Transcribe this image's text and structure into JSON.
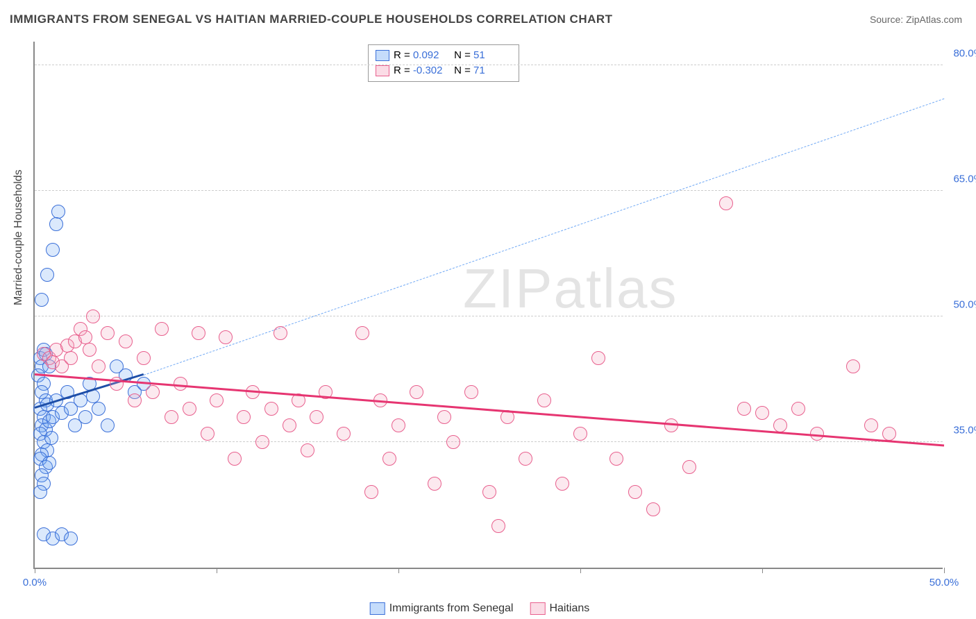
{
  "title": "IMMIGRANTS FROM SENEGAL VS HAITIAN MARRIED-COUPLE HOUSEHOLDS CORRELATION CHART",
  "source": "Source: ZipAtlas.com",
  "watermark": "ZIPatlas",
  "ylabel": "Married-couple Households",
  "chart": {
    "type": "scatter",
    "background_color": "#ffffff",
    "grid_color": "#cccccc",
    "axis_color": "#888888",
    "xlim": [
      0,
      50
    ],
    "ylim": [
      20,
      83
    ],
    "xticks": [
      0,
      10,
      20,
      30,
      40,
      50
    ],
    "xtick_labels": {
      "0": "0.0%",
      "50": "50.0%"
    },
    "yticks": [
      35,
      50,
      65,
      80
    ],
    "ytick_labels": {
      "35": "35.0%",
      "50": "50.0%",
      "65": "65.0%",
      "80": "80.0%"
    },
    "tick_color": "#3a6fd8",
    "tick_fontsize": 15,
    "marker_radius": 9,
    "marker_border_width": 1.5,
    "marker_fill_opacity": 0.25,
    "series": [
      {
        "name": "Immigrants from Senegal",
        "fill_color": "#6fa8f5",
        "border_color": "#3a6fd8",
        "R": "0.092",
        "N": "51",
        "trend": {
          "x1": 0,
          "y1": 39,
          "x2": 6,
          "y2": 43,
          "color": "#1d4ea8",
          "width": 3,
          "dash": false
        },
        "trend_ext": {
          "x1": 6,
          "y1": 43,
          "x2": 50,
          "y2": 76,
          "color": "#6fa8f5",
          "width": 1.5,
          "dash": true
        },
        "points": [
          [
            0.3,
            45
          ],
          [
            0.4,
            44
          ],
          [
            0.5,
            46
          ],
          [
            0.6,
            45.5
          ],
          [
            0.2,
            43
          ],
          [
            0.5,
            42
          ],
          [
            0.8,
            44
          ],
          [
            0.4,
            41
          ],
          [
            0.6,
            40
          ],
          [
            0.3,
            39
          ],
          [
            0.5,
            38
          ],
          [
            0.7,
            39.5
          ],
          [
            0.4,
            37
          ],
          [
            0.6,
            36.5
          ],
          [
            0.3,
            36
          ],
          [
            0.8,
            37.5
          ],
          [
            0.5,
            35
          ],
          [
            0.7,
            34
          ],
          [
            0.4,
            33.5
          ],
          [
            0.9,
            35.5
          ],
          [
            0.3,
            33
          ],
          [
            0.6,
            32
          ],
          [
            0.4,
            31
          ],
          [
            0.8,
            32.5
          ],
          [
            0.5,
            30
          ],
          [
            0.3,
            29
          ],
          [
            1.0,
            38
          ],
          [
            1.2,
            40
          ],
          [
            1.5,
            38.5
          ],
          [
            1.8,
            41
          ],
          [
            2.0,
            39
          ],
          [
            2.2,
            37
          ],
          [
            2.5,
            40
          ],
          [
            2.8,
            38
          ],
          [
            3.0,
            42
          ],
          [
            3.2,
            40.5
          ],
          [
            3.5,
            39
          ],
          [
            4.0,
            37
          ],
          [
            4.5,
            44
          ],
          [
            5.0,
            43
          ],
          [
            5.5,
            41
          ],
          [
            6.0,
            42
          ],
          [
            0.4,
            52
          ],
          [
            0.7,
            55
          ],
          [
            1.0,
            58
          ],
          [
            1.3,
            62.5
          ],
          [
            1.2,
            61
          ],
          [
            0.5,
            24
          ],
          [
            1.0,
            23.5
          ],
          [
            1.5,
            24
          ],
          [
            2.0,
            23.5
          ]
        ]
      },
      {
        "name": "Haitians",
        "fill_color": "#f5a8c0",
        "border_color": "#e85f8d",
        "R": "-0.302",
        "N": "71",
        "trend": {
          "x1": 0,
          "y1": 43,
          "x2": 50,
          "y2": 34.5,
          "color": "#e63571",
          "width": 3,
          "dash": false
        },
        "points": [
          [
            0.5,
            45.5
          ],
          [
            0.8,
            45
          ],
          [
            1.0,
            44.5
          ],
          [
            1.2,
            46
          ],
          [
            1.5,
            44
          ],
          [
            1.8,
            46.5
          ],
          [
            2.0,
            45
          ],
          [
            2.2,
            47
          ],
          [
            2.5,
            48.5
          ],
          [
            2.8,
            47.5
          ],
          [
            3.0,
            46
          ],
          [
            3.2,
            50
          ],
          [
            3.5,
            44
          ],
          [
            4.0,
            48
          ],
          [
            4.5,
            42
          ],
          [
            5.0,
            47
          ],
          [
            5.5,
            40
          ],
          [
            6.0,
            45
          ],
          [
            6.5,
            41
          ],
          [
            7.0,
            48.5
          ],
          [
            7.5,
            38
          ],
          [
            8.0,
            42
          ],
          [
            8.5,
            39
          ],
          [
            9.0,
            48
          ],
          [
            9.5,
            36
          ],
          [
            10.0,
            40
          ],
          [
            10.5,
            47.5
          ],
          [
            11.0,
            33
          ],
          [
            11.5,
            38
          ],
          [
            12.0,
            41
          ],
          [
            12.5,
            35
          ],
          [
            13.0,
            39
          ],
          [
            13.5,
            48
          ],
          [
            14.0,
            37
          ],
          [
            14.5,
            40
          ],
          [
            15.0,
            34
          ],
          [
            15.5,
            38
          ],
          [
            16.0,
            41
          ],
          [
            17.0,
            36
          ],
          [
            18.0,
            48
          ],
          [
            18.5,
            29
          ],
          [
            19.0,
            40
          ],
          [
            19.5,
            33
          ],
          [
            20.0,
            37
          ],
          [
            21.0,
            41
          ],
          [
            22.0,
            30
          ],
          [
            22.5,
            38
          ],
          [
            23.0,
            35
          ],
          [
            24.0,
            41
          ],
          [
            25.0,
            29
          ],
          [
            25.5,
            25
          ],
          [
            26.0,
            38
          ],
          [
            27.0,
            33
          ],
          [
            28.0,
            40
          ],
          [
            29.0,
            30
          ],
          [
            30.0,
            36
          ],
          [
            31.0,
            45
          ],
          [
            32.0,
            33
          ],
          [
            33.0,
            29
          ],
          [
            34.0,
            27
          ],
          [
            35.0,
            37
          ],
          [
            36.0,
            32
          ],
          [
            38.0,
            63.5
          ],
          [
            39.0,
            39
          ],
          [
            40.0,
            38.5
          ],
          [
            41.0,
            37
          ],
          [
            42.0,
            39
          ],
          [
            43.0,
            36
          ],
          [
            45.0,
            44
          ],
          [
            46.0,
            37
          ],
          [
            47.0,
            36
          ]
        ]
      }
    ]
  },
  "legend_top": {
    "r_label": "R =",
    "n_label": "N ="
  },
  "legend_bottom": {
    "items": [
      "Immigrants from Senegal",
      "Haitians"
    ]
  }
}
